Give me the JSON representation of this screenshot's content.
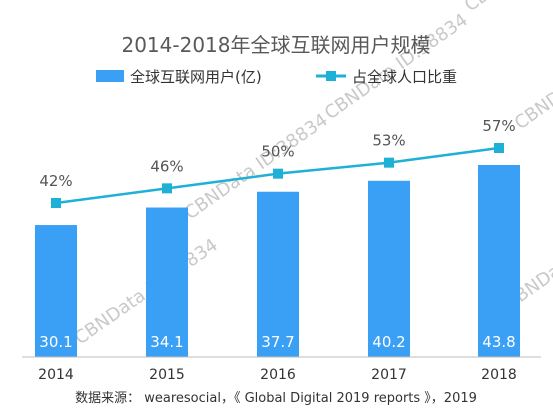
{
  "chart_data": {
    "type": "bar",
    "title": "2014-2018年全球互联网用户规模",
    "categories": [
      "2014",
      "2015",
      "2016",
      "2017",
      "2018"
    ],
    "series": [
      {
        "name": "全球互联网用户(亿)",
        "type": "bar",
        "color": "#3aa0f5",
        "values": [
          30.1,
          34.1,
          37.7,
          40.2,
          43.8
        ],
        "labels": [
          "30.1",
          "34.1",
          "37.7",
          "40.2",
          "43.8"
        ]
      },
      {
        "name": "占全球人口比重",
        "type": "line",
        "color": "#1fb0d6",
        "values": [
          42,
          46,
          50,
          53,
          57
        ],
        "labels": [
          "42%",
          "46%",
          "50%",
          "53%",
          "57%"
        ]
      }
    ],
    "bar_ylim": [
      0,
      45
    ],
    "line_ylim": [
      0,
      75
    ],
    "legend_position": "top-center",
    "grid": false
  },
  "source_note": "数据来源： wearesocial，《 Global Digital 2019 reports 》，2019",
  "watermark": "CBNData ID:38834"
}
